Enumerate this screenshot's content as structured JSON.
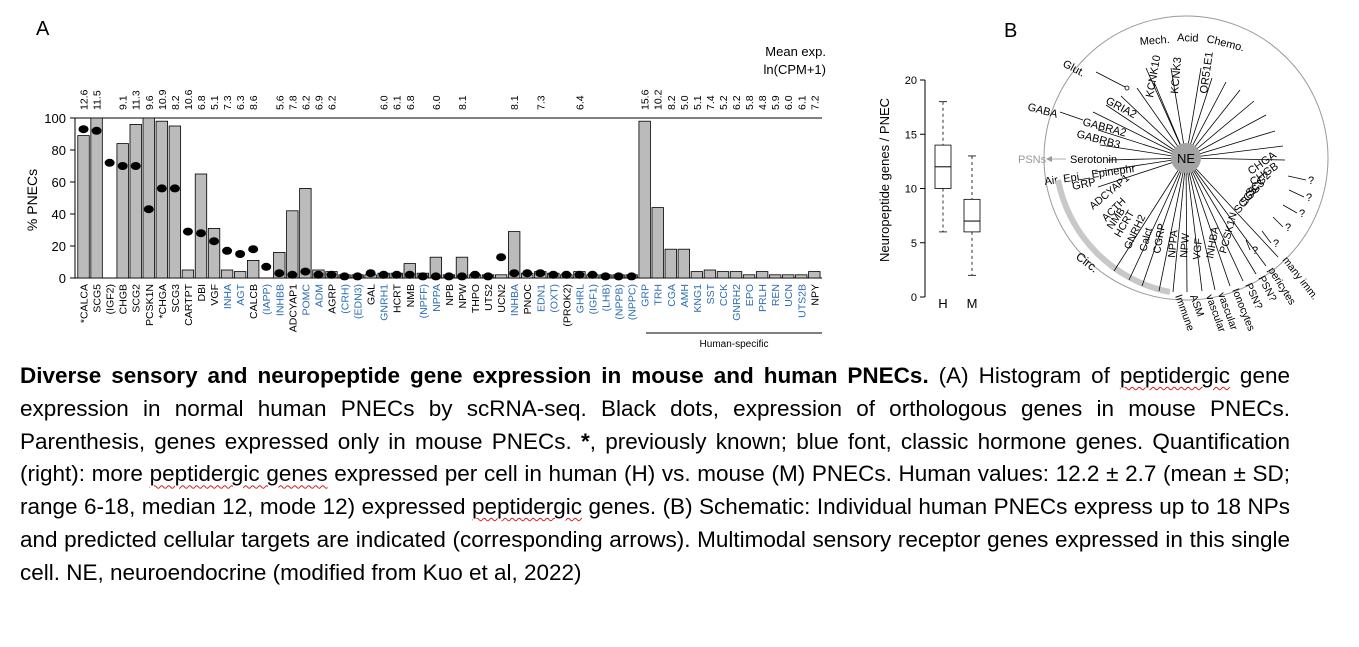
{
  "panel_a": {
    "label": "A",
    "mean_exp_title": [
      "Mean exp.",
      "ln(CPM+1)"
    ],
    "human_specific_label": "Human-specific",
    "classic_color": "#2d6db5",
    "bar_color": "#bbbbbb"
  },
  "panel_b": {
    "label": "B",
    "center": "NE",
    "top_labels": [
      "Mech.",
      "Acid",
      "Chemo."
    ],
    "top_genes": [
      "KCNK10",
      "KCNK3",
      "OR51E1"
    ],
    "glut": "Glut.",
    "gria2": "GRIA2",
    "gaba": "GABA",
    "gabra2": "GABRA2",
    "gabrb3": "GABRB3",
    "psns": "PSNs",
    "serotonin": "Serotonin",
    "epinephr": "Epinephr",
    "air_epi": "Air. Epi",
    "grp": "GRP",
    "right_genes": [
      "CHGA",
      "CHGB",
      "SCG2",
      "SCG3",
      "SCG5"
    ],
    "question": "?",
    "np_genes": [
      "ADCYAP1",
      "ACTH",
      "NMB",
      "HCRT",
      "GNRH2",
      "Calct",
      "CGRP",
      "NPPA",
      "NPW",
      "VGF",
      "INHBA",
      "PCSK1N"
    ],
    "targets": [
      "Immune",
      "ASM",
      "vascular",
      "vascular",
      "Ionocytes",
      "PSN?",
      "PSN?",
      "pericytes",
      "many imm."
    ],
    "circ": "Circ.",
    "psns_color": "#9a9a9a"
  },
  "box": {
    "ylabel": "Neuropeptide genes / PNEC",
    "yticks": [
      0,
      5,
      10,
      15,
      20
    ]
  },
  "caption": {
    "bold": "Diverse sensory and neuropeptide gene expression in mouse and human PNECs.",
    "t1": " (A) Histogram of ",
    "w1": "peptidergic",
    "t2": " gene expression in normal human PNECs by scRNA-seq. Black dots, expression of orthologous genes in mouse PNECs. Parenthesis, genes expressed only in mouse PNECs. ",
    "star": "*",
    "t3": ", previously known; blue font, classic hormone genes. Quantification (right): more ",
    "w2": "peptidergic genes",
    "t4": " expressed per cell in human (H) vs. mouse (M) PNECs. Human values: 12.2 ± 2.7 (mean  ± SD; range 6-18, median 12, mode 12) expressed ",
    "w3": "peptidergic",
    "t5": " genes. (B) Schematic: Individual human PNECs express up to 18 NPs and predicted cellular targets are indicated (corresponding arrows). Multimodal sensory receptor genes expressed in this single cell. NE, neuroendocrine (modified from Kuo et al, 2022)"
  },
  "chart_data": [
    {
      "type": "bar",
      "title": "",
      "xlabel": "",
      "ylabel": "% PNECs",
      "ylim": [
        0,
        100
      ],
      "yticks": [
        0,
        20,
        40,
        60,
        80,
        100
      ],
      "categories": [
        "*CALCA",
        "SCG5",
        "(IGF2)",
        "CHGB",
        "SCG2",
        "PCSK1N",
        "*CHGA",
        "SCG3",
        "CARTPT",
        "DBI",
        "VGF",
        "INHA",
        "AGT",
        "CALCB",
        "(IAPP)",
        "INHBB",
        "ADCYAP1",
        "POMC",
        "ADM",
        "AGRP",
        "(CRH)",
        "(EDN3)",
        "GAL",
        "GNRH1",
        "HCRT",
        "NMB",
        "(NPFF)",
        "NPPA",
        "NPB",
        "NPW",
        "THPO",
        "UTS2",
        "UCN2",
        "INHBA",
        "PNOC",
        "EDN1",
        "(OXT)",
        "(PROK2)",
        "GHRL",
        "(IGF1)",
        "(LHB)",
        "(NPPB)",
        "(NPPC)",
        "GRP",
        "TRH",
        "CGA",
        "AMH",
        "KNG1",
        "SST",
        "CCK",
        "GNRH2",
        "EPO",
        "PRLH",
        "REN",
        "UCN",
        "UTS2B",
        "NPY"
      ],
      "classic_hormone": [
        false,
        false,
        false,
        false,
        false,
        false,
        false,
        false,
        false,
        false,
        false,
        true,
        true,
        false,
        true,
        true,
        false,
        true,
        true,
        false,
        true,
        true,
        false,
        true,
        false,
        false,
        true,
        true,
        false,
        false,
        false,
        false,
        false,
        true,
        false,
        true,
        true,
        false,
        true,
        true,
        true,
        true,
        true,
        true,
        true,
        true,
        true,
        true,
        true,
        true,
        true,
        true,
        true,
        true,
        true,
        true,
        false
      ],
      "mean_exp": [
        "12.6",
        "11.5",
        "",
        "9.1",
        "11.3",
        "9.6",
        "10.9",
        "8.2",
        "10.6",
        "6.8",
        "5.1",
        "7.3",
        "6.3",
        "8.6",
        "",
        "5.6",
        "7.8",
        "6.2",
        "6.9",
        "6.2",
        "",
        "",
        "",
        "6.0",
        "6.1",
        "6.8",
        "",
        "6.0",
        "",
        "8.1",
        "",
        "",
        "",
        "8.1",
        "",
        "7.3",
        "",
        "",
        "6.4",
        "",
        "",
        "",
        "",
        "15.6",
        "10.2",
        "8.2",
        "5.0",
        "5.1",
        "7.4",
        "5.2",
        "6.2",
        "5.8",
        "4.8",
        "5.9",
        "6.0",
        "6.1",
        "7.2"
      ],
      "series": [
        {
          "name": "Human PNECs",
          "values": [
            89,
            100,
            0,
            84,
            96,
            100,
            98,
            95,
            5,
            65,
            31,
            5,
            4,
            11,
            0,
            16,
            42,
            56,
            5,
            4,
            2,
            2,
            2,
            3,
            3,
            9,
            3,
            13,
            2,
            13,
            2,
            2,
            2,
            29,
            3,
            4,
            3,
            2,
            4,
            2,
            2,
            2,
            2,
            98,
            44,
            18,
            18,
            4,
            5,
            4,
            4,
            2,
            4,
            2,
            2,
            2,
            4
          ]
        },
        {
          "name": "Mouse PNECs",
          "values": [
            93,
            92,
            72,
            70,
            70,
            43,
            56,
            56,
            29,
            28,
            23,
            17,
            15,
            18,
            7,
            3,
            2,
            4,
            2,
            2,
            1,
            1,
            3,
            2,
            2,
            2,
            1,
            1,
            1,
            1,
            2,
            1,
            13,
            3,
            3,
            3,
            2,
            2,
            2,
            2,
            1,
            1,
            1,
            null,
            null,
            null,
            null,
            null,
            null,
            null,
            null,
            null,
            null,
            null,
            null,
            null,
            null
          ]
        }
      ],
      "human_specific_range": [
        "GRP",
        "NPY"
      ]
    },
    {
      "type": "box",
      "title": "",
      "xlabel": "",
      "ylabel": "Neuropeptide genes / PNEC",
      "ylim": [
        0,
        20
      ],
      "categories": [
        "H",
        "M"
      ],
      "series": [
        {
          "name": "H",
          "min": 6,
          "q1": 10,
          "median": 12,
          "q3": 14,
          "max": 18
        },
        {
          "name": "M",
          "min": 2,
          "q1": 6,
          "median": 7,
          "q3": 9,
          "max": 13
        }
      ]
    }
  ]
}
